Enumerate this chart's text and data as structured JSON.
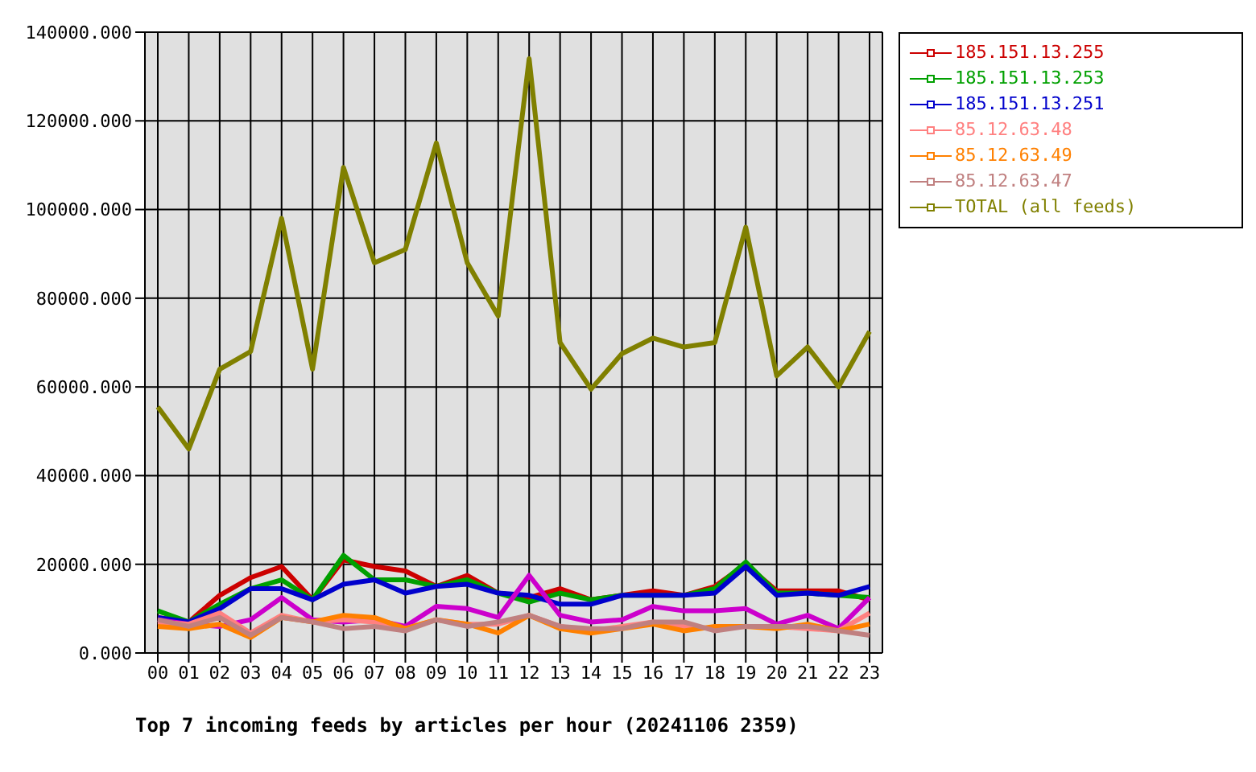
{
  "chart_data": {
    "type": "line",
    "title": "Top 7 incoming feeds by articles per hour (20241106 2359)",
    "categories": [
      "00",
      "01",
      "02",
      "03",
      "04",
      "05",
      "06",
      "07",
      "08",
      "09",
      "10",
      "11",
      "12",
      "13",
      "14",
      "15",
      "16",
      "17",
      "18",
      "19",
      "20",
      "21",
      "22",
      "23"
    ],
    "series": [
      {
        "name": "185.151.13.255",
        "color": "#cc0000",
        "values": [
          8000,
          7000,
          13000,
          17000,
          19500,
          12000,
          21000,
          19500,
          18500,
          15000,
          17500,
          13500,
          12500,
          14500,
          12000,
          13000,
          14000,
          13000,
          15000,
          20000,
          14000,
          14000,
          14000,
          12000
        ]
      },
      {
        "name": "185.151.13.253",
        "color": "#00a000",
        "values": [
          9500,
          7000,
          11000,
          14500,
          16500,
          12000,
          22000,
          16500,
          16500,
          15000,
          16500,
          13500,
          11500,
          13500,
          12000,
          13000,
          13000,
          13000,
          14500,
          20500,
          13500,
          13500,
          13000,
          12500
        ]
      },
      {
        "name": "185.151.13.251",
        "color": "#0000cc",
        "values": [
          8000,
          7000,
          10000,
          14500,
          14500,
          12000,
          15500,
          16500,
          13500,
          15000,
          15500,
          13500,
          13000,
          11000,
          11000,
          13000,
          13000,
          13000,
          13500,
          19500,
          13000,
          13500,
          13000,
          15000
        ]
      },
      {
        "color": "#cc00cc",
        "values": [
          7500,
          6500,
          6000,
          7500,
          12500,
          7500,
          7000,
          7500,
          6000,
          10500,
          10000,
          8000,
          17500,
          8500,
          7000,
          7500,
          10500,
          9500,
          9500,
          10000,
          6500,
          8500,
          5500,
          12500
        ]
      },
      {
        "name": "85.12.63.48",
        "color": "#ff8080",
        "values": [
          7000,
          6500,
          9000,
          4500,
          8500,
          7000,
          7500,
          7000,
          5500,
          7500,
          6500,
          6500,
          8500,
          6000,
          5000,
          6000,
          7000,
          6000,
          5500,
          6000,
          6000,
          5500,
          5000,
          9000
        ]
      },
      {
        "name": "85.12.63.49",
        "color": "#ff8000",
        "values": [
          6000,
          5500,
          6500,
          3500,
          8000,
          7000,
          8500,
          8000,
          5500,
          7500,
          6500,
          4500,
          8500,
          5500,
          4500,
          5500,
          6500,
          5000,
          6000,
          6000,
          5500,
          6500,
          5000,
          6500
        ]
      },
      {
        "name": "85.12.63.47",
        "color": "#c08080",
        "values": [
          7500,
          6000,
          8000,
          4000,
          8000,
          7000,
          5500,
          6000,
          5000,
          7500,
          6000,
          7000,
          8500,
          6000,
          5500,
          5500,
          7000,
          7000,
          5000,
          6000,
          6000,
          6000,
          5000,
          4000
        ]
      },
      {
        "name": "TOTAL (all feeds)",
        "color": "#808000",
        "values": [
          55500,
          46000,
          64000,
          68000,
          98000,
          64000,
          109500,
          88000,
          91000,
          115000,
          88000,
          76000,
          134000,
          70000,
          59500,
          67500,
          71000,
          69000,
          70000,
          96000,
          62500,
          69000,
          60000,
          72500
        ]
      }
    ],
    "ylim": [
      0,
      140000
    ],
    "yticks": [
      {
        "value": 0,
        "label": "0.000"
      },
      {
        "value": 20000,
        "label": "20000.000"
      },
      {
        "value": 40000,
        "label": "40000.000"
      },
      {
        "value": 60000,
        "label": "60000.000"
      },
      {
        "value": 80000,
        "label": "80000.000"
      },
      {
        "value": 100000,
        "label": "100000.000"
      },
      {
        "value": 120000,
        "label": "120000.000"
      },
      {
        "value": 140000,
        "label": "140000.000"
      }
    ],
    "grid": true,
    "legend": "top right"
  }
}
